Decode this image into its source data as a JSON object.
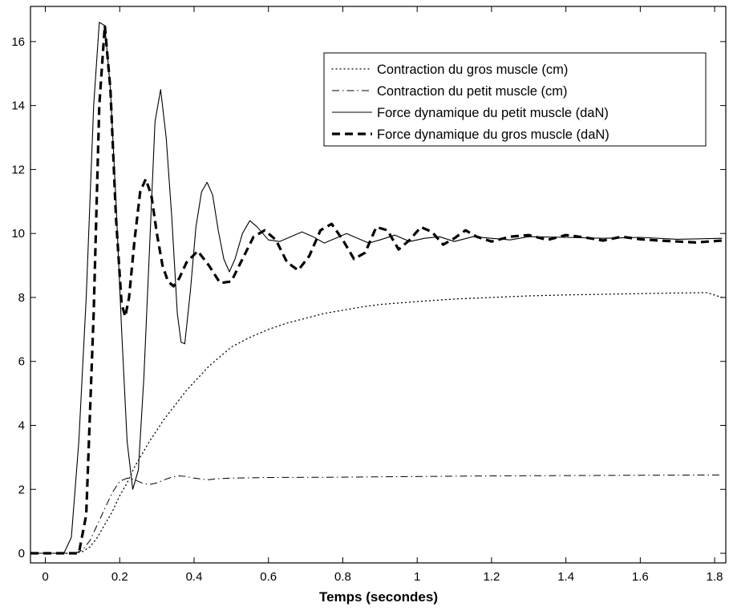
{
  "chart_data": {
    "type": "line",
    "title": "",
    "xlabel": "Temps (secondes)",
    "ylabel": "",
    "xlim": [
      -0.04,
      1.83
    ],
    "ylim": [
      -0.3,
      17.1
    ],
    "xticks": [
      0,
      0.2,
      0.4,
      0.6,
      0.8,
      1,
      1.2,
      1.4,
      1.6,
      1.8
    ],
    "xtick_labels": [
      "0",
      "0.2",
      "0.4",
      "0.6",
      "0.8",
      "1",
      "1.2",
      "1.4",
      "1.6",
      "1.8"
    ],
    "yticks": [
      0,
      2,
      4,
      6,
      8,
      10,
      12,
      14,
      16
    ],
    "ytick_labels": [
      "0",
      "2",
      "4",
      "6",
      "8",
      "10",
      "12",
      "14",
      "16"
    ],
    "grid": false,
    "legend_position": "top-right",
    "series": [
      {
        "name": "Contraction du gros muscle (cm)",
        "style": "dotted",
        "color": "#000000",
        "points": [
          [
            -0.04,
            0
          ],
          [
            0.08,
            0
          ],
          [
            0.1,
            0.05
          ],
          [
            0.12,
            0.2
          ],
          [
            0.14,
            0.5
          ],
          [
            0.16,
            0.9
          ],
          [
            0.18,
            1.3
          ],
          [
            0.2,
            1.8
          ],
          [
            0.22,
            2.2
          ],
          [
            0.24,
            2.7
          ],
          [
            0.26,
            3.1
          ],
          [
            0.28,
            3.5
          ],
          [
            0.3,
            3.85
          ],
          [
            0.32,
            4.2
          ],
          [
            0.34,
            4.5
          ],
          [
            0.36,
            4.8
          ],
          [
            0.38,
            5.1
          ],
          [
            0.4,
            5.35
          ],
          [
            0.42,
            5.6
          ],
          [
            0.44,
            5.85
          ],
          [
            0.46,
            6.05
          ],
          [
            0.48,
            6.25
          ],
          [
            0.5,
            6.45
          ],
          [
            0.55,
            6.75
          ],
          [
            0.6,
            7.0
          ],
          [
            0.65,
            7.2
          ],
          [
            0.7,
            7.35
          ],
          [
            0.75,
            7.5
          ],
          [
            0.8,
            7.6
          ],
          [
            0.85,
            7.7
          ],
          [
            0.9,
            7.78
          ],
          [
            1.0,
            7.87
          ],
          [
            1.1,
            7.95
          ],
          [
            1.2,
            8.0
          ],
          [
            1.3,
            8.05
          ],
          [
            1.4,
            8.08
          ],
          [
            1.5,
            8.1
          ],
          [
            1.6,
            8.12
          ],
          [
            1.7,
            8.14
          ],
          [
            1.78,
            8.15
          ],
          [
            1.82,
            8.0
          ]
        ]
      },
      {
        "name": "Contraction du petit muscle (cm)",
        "style": "dashdot",
        "color": "#000000",
        "points": [
          [
            -0.04,
            0
          ],
          [
            0.08,
            0
          ],
          [
            0.1,
            0.1
          ],
          [
            0.12,
            0.4
          ],
          [
            0.14,
            0.9
          ],
          [
            0.16,
            1.4
          ],
          [
            0.18,
            1.9
          ],
          [
            0.2,
            2.25
          ],
          [
            0.22,
            2.35
          ],
          [
            0.24,
            2.3
          ],
          [
            0.26,
            2.2
          ],
          [
            0.28,
            2.15
          ],
          [
            0.3,
            2.2
          ],
          [
            0.32,
            2.3
          ],
          [
            0.34,
            2.38
          ],
          [
            0.36,
            2.42
          ],
          [
            0.38,
            2.4
          ],
          [
            0.4,
            2.35
          ],
          [
            0.42,
            2.32
          ],
          [
            0.44,
            2.3
          ],
          [
            0.46,
            2.33
          ],
          [
            0.5,
            2.35
          ],
          [
            0.6,
            2.37
          ],
          [
            0.8,
            2.38
          ],
          [
            1.0,
            2.4
          ],
          [
            1.2,
            2.42
          ],
          [
            1.4,
            2.43
          ],
          [
            1.6,
            2.44
          ],
          [
            1.82,
            2.45
          ]
        ]
      },
      {
        "name": "Force dynamique du petit muscle (daN)",
        "style": "solid",
        "color": "#000000",
        "points": [
          [
            -0.04,
            0
          ],
          [
            0.05,
            0
          ],
          [
            0.07,
            0.5
          ],
          [
            0.09,
            3.5
          ],
          [
            0.11,
            8
          ],
          [
            0.13,
            14
          ],
          [
            0.145,
            16.6
          ],
          [
            0.16,
            16.5
          ],
          [
            0.175,
            14.5
          ],
          [
            0.19,
            11
          ],
          [
            0.205,
            7
          ],
          [
            0.22,
            3.5
          ],
          [
            0.235,
            2.0
          ],
          [
            0.25,
            2.6
          ],
          [
            0.265,
            5.5
          ],
          [
            0.28,
            9.5
          ],
          [
            0.295,
            13.5
          ],
          [
            0.31,
            14.5
          ],
          [
            0.325,
            13.0
          ],
          [
            0.34,
            10.5
          ],
          [
            0.355,
            7.5
          ],
          [
            0.365,
            6.6
          ],
          [
            0.375,
            6.55
          ],
          [
            0.39,
            8.2
          ],
          [
            0.405,
            10.2
          ],
          [
            0.42,
            11.3
          ],
          [
            0.435,
            11.6
          ],
          [
            0.45,
            11.2
          ],
          [
            0.465,
            10.1
          ],
          [
            0.48,
            9.2
          ],
          [
            0.495,
            8.8
          ],
          [
            0.51,
            9.2
          ],
          [
            0.53,
            10.0
          ],
          [
            0.55,
            10.4
          ],
          [
            0.57,
            10.2
          ],
          [
            0.6,
            9.8
          ],
          [
            0.63,
            9.75
          ],
          [
            0.66,
            9.9
          ],
          [
            0.69,
            10.05
          ],
          [
            0.72,
            9.9
          ],
          [
            0.75,
            9.7
          ],
          [
            0.78,
            9.85
          ],
          [
            0.81,
            10.0
          ],
          [
            0.84,
            9.85
          ],
          [
            0.87,
            9.7
          ],
          [
            0.9,
            9.8
          ],
          [
            0.94,
            9.95
          ],
          [
            0.98,
            9.75
          ],
          [
            1.02,
            9.85
          ],
          [
            1.06,
            9.9
          ],
          [
            1.1,
            9.75
          ],
          [
            1.15,
            9.9
          ],
          [
            1.2,
            9.85
          ],
          [
            1.25,
            9.8
          ],
          [
            1.3,
            9.9
          ],
          [
            1.4,
            9.88
          ],
          [
            1.5,
            9.85
          ],
          [
            1.6,
            9.88
          ],
          [
            1.7,
            9.82
          ],
          [
            1.82,
            9.85
          ]
        ]
      },
      {
        "name": "Force dynamique du gros muscle (daN)",
        "style": "dashed",
        "color": "#000000",
        "points": [
          [
            -0.04,
            0
          ],
          [
            0.09,
            0
          ],
          [
            0.11,
            1.2
          ],
          [
            0.13,
            7.5
          ],
          [
            0.145,
            14
          ],
          [
            0.16,
            16.5
          ],
          [
            0.175,
            14.5
          ],
          [
            0.19,
            10.5
          ],
          [
            0.205,
            7.8
          ],
          [
            0.215,
            7.4
          ],
          [
            0.225,
            8.0
          ],
          [
            0.24,
            9.8
          ],
          [
            0.255,
            11.3
          ],
          [
            0.27,
            11.7
          ],
          [
            0.285,
            11.2
          ],
          [
            0.3,
            10.0
          ],
          [
            0.315,
            9.0
          ],
          [
            0.33,
            8.5
          ],
          [
            0.345,
            8.35
          ],
          [
            0.36,
            8.6
          ],
          [
            0.38,
            9.1
          ],
          [
            0.41,
            9.45
          ],
          [
            0.44,
            9.0
          ],
          [
            0.47,
            8.45
          ],
          [
            0.5,
            8.5
          ],
          [
            0.53,
            9.2
          ],
          [
            0.56,
            9.9
          ],
          [
            0.59,
            10.1
          ],
          [
            0.62,
            9.8
          ],
          [
            0.65,
            9.1
          ],
          [
            0.68,
            8.85
          ],
          [
            0.71,
            9.3
          ],
          [
            0.74,
            10.1
          ],
          [
            0.77,
            10.3
          ],
          [
            0.8,
            9.8
          ],
          [
            0.83,
            9.2
          ],
          [
            0.86,
            9.4
          ],
          [
            0.89,
            10.2
          ],
          [
            0.92,
            10.1
          ],
          [
            0.95,
            9.5
          ],
          [
            0.98,
            9.8
          ],
          [
            1.01,
            10.2
          ],
          [
            1.04,
            10.05
          ],
          [
            1.07,
            9.65
          ],
          [
            1.1,
            9.85
          ],
          [
            1.13,
            10.1
          ],
          [
            1.16,
            9.9
          ],
          [
            1.2,
            9.75
          ],
          [
            1.25,
            9.9
          ],
          [
            1.3,
            9.95
          ],
          [
            1.35,
            9.8
          ],
          [
            1.4,
            9.95
          ],
          [
            1.45,
            9.88
          ],
          [
            1.5,
            9.78
          ],
          [
            1.55,
            9.9
          ],
          [
            1.6,
            9.82
          ],
          [
            1.65,
            9.78
          ],
          [
            1.7,
            9.75
          ],
          [
            1.75,
            9.72
          ],
          [
            1.82,
            9.78
          ]
        ]
      }
    ]
  }
}
